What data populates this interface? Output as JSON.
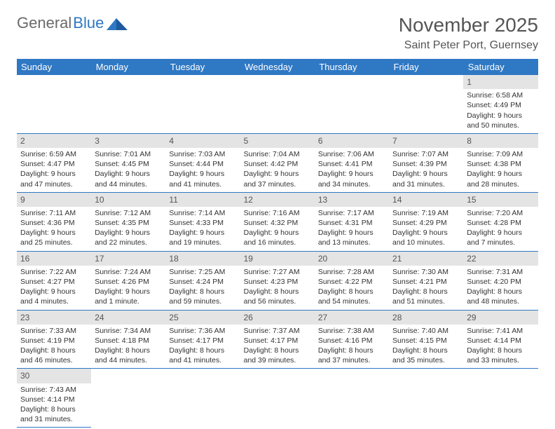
{
  "brand": {
    "word1": "General",
    "word2": "Blue"
  },
  "title": "November 2025",
  "subtitle": "Saint Peter Port, Guernsey",
  "colors": {
    "header_bg": "#2f78c4",
    "daynum_bg": "#e4e4e4",
    "text": "#333333",
    "title_text": "#555555"
  },
  "dayNames": [
    "Sunday",
    "Monday",
    "Tuesday",
    "Wednesday",
    "Thursday",
    "Friday",
    "Saturday"
  ],
  "weeks": [
    [
      null,
      null,
      null,
      null,
      null,
      null,
      {
        "n": "1",
        "sunrise": "Sunrise: 6:58 AM",
        "sunset": "Sunset: 4:49 PM",
        "daylight": "Daylight: 9 hours and 50 minutes."
      }
    ],
    [
      {
        "n": "2",
        "sunrise": "Sunrise: 6:59 AM",
        "sunset": "Sunset: 4:47 PM",
        "daylight": "Daylight: 9 hours and 47 minutes."
      },
      {
        "n": "3",
        "sunrise": "Sunrise: 7:01 AM",
        "sunset": "Sunset: 4:45 PM",
        "daylight": "Daylight: 9 hours and 44 minutes."
      },
      {
        "n": "4",
        "sunrise": "Sunrise: 7:03 AM",
        "sunset": "Sunset: 4:44 PM",
        "daylight": "Daylight: 9 hours and 41 minutes."
      },
      {
        "n": "5",
        "sunrise": "Sunrise: 7:04 AM",
        "sunset": "Sunset: 4:42 PM",
        "daylight": "Daylight: 9 hours and 37 minutes."
      },
      {
        "n": "6",
        "sunrise": "Sunrise: 7:06 AM",
        "sunset": "Sunset: 4:41 PM",
        "daylight": "Daylight: 9 hours and 34 minutes."
      },
      {
        "n": "7",
        "sunrise": "Sunrise: 7:07 AM",
        "sunset": "Sunset: 4:39 PM",
        "daylight": "Daylight: 9 hours and 31 minutes."
      },
      {
        "n": "8",
        "sunrise": "Sunrise: 7:09 AM",
        "sunset": "Sunset: 4:38 PM",
        "daylight": "Daylight: 9 hours and 28 minutes."
      }
    ],
    [
      {
        "n": "9",
        "sunrise": "Sunrise: 7:11 AM",
        "sunset": "Sunset: 4:36 PM",
        "daylight": "Daylight: 9 hours and 25 minutes."
      },
      {
        "n": "10",
        "sunrise": "Sunrise: 7:12 AM",
        "sunset": "Sunset: 4:35 PM",
        "daylight": "Daylight: 9 hours and 22 minutes."
      },
      {
        "n": "11",
        "sunrise": "Sunrise: 7:14 AM",
        "sunset": "Sunset: 4:33 PM",
        "daylight": "Daylight: 9 hours and 19 minutes."
      },
      {
        "n": "12",
        "sunrise": "Sunrise: 7:16 AM",
        "sunset": "Sunset: 4:32 PM",
        "daylight": "Daylight: 9 hours and 16 minutes."
      },
      {
        "n": "13",
        "sunrise": "Sunrise: 7:17 AM",
        "sunset": "Sunset: 4:31 PM",
        "daylight": "Daylight: 9 hours and 13 minutes."
      },
      {
        "n": "14",
        "sunrise": "Sunrise: 7:19 AM",
        "sunset": "Sunset: 4:29 PM",
        "daylight": "Daylight: 9 hours and 10 minutes."
      },
      {
        "n": "15",
        "sunrise": "Sunrise: 7:20 AM",
        "sunset": "Sunset: 4:28 PM",
        "daylight": "Daylight: 9 hours and 7 minutes."
      }
    ],
    [
      {
        "n": "16",
        "sunrise": "Sunrise: 7:22 AM",
        "sunset": "Sunset: 4:27 PM",
        "daylight": "Daylight: 9 hours and 4 minutes."
      },
      {
        "n": "17",
        "sunrise": "Sunrise: 7:24 AM",
        "sunset": "Sunset: 4:26 PM",
        "daylight": "Daylight: 9 hours and 1 minute."
      },
      {
        "n": "18",
        "sunrise": "Sunrise: 7:25 AM",
        "sunset": "Sunset: 4:24 PM",
        "daylight": "Daylight: 8 hours and 59 minutes."
      },
      {
        "n": "19",
        "sunrise": "Sunrise: 7:27 AM",
        "sunset": "Sunset: 4:23 PM",
        "daylight": "Daylight: 8 hours and 56 minutes."
      },
      {
        "n": "20",
        "sunrise": "Sunrise: 7:28 AM",
        "sunset": "Sunset: 4:22 PM",
        "daylight": "Daylight: 8 hours and 54 minutes."
      },
      {
        "n": "21",
        "sunrise": "Sunrise: 7:30 AM",
        "sunset": "Sunset: 4:21 PM",
        "daylight": "Daylight: 8 hours and 51 minutes."
      },
      {
        "n": "22",
        "sunrise": "Sunrise: 7:31 AM",
        "sunset": "Sunset: 4:20 PM",
        "daylight": "Daylight: 8 hours and 48 minutes."
      }
    ],
    [
      {
        "n": "23",
        "sunrise": "Sunrise: 7:33 AM",
        "sunset": "Sunset: 4:19 PM",
        "daylight": "Daylight: 8 hours and 46 minutes."
      },
      {
        "n": "24",
        "sunrise": "Sunrise: 7:34 AM",
        "sunset": "Sunset: 4:18 PM",
        "daylight": "Daylight: 8 hours and 44 minutes."
      },
      {
        "n": "25",
        "sunrise": "Sunrise: 7:36 AM",
        "sunset": "Sunset: 4:17 PM",
        "daylight": "Daylight: 8 hours and 41 minutes."
      },
      {
        "n": "26",
        "sunrise": "Sunrise: 7:37 AM",
        "sunset": "Sunset: 4:17 PM",
        "daylight": "Daylight: 8 hours and 39 minutes."
      },
      {
        "n": "27",
        "sunrise": "Sunrise: 7:38 AM",
        "sunset": "Sunset: 4:16 PM",
        "daylight": "Daylight: 8 hours and 37 minutes."
      },
      {
        "n": "28",
        "sunrise": "Sunrise: 7:40 AM",
        "sunset": "Sunset: 4:15 PM",
        "daylight": "Daylight: 8 hours and 35 minutes."
      },
      {
        "n": "29",
        "sunrise": "Sunrise: 7:41 AM",
        "sunset": "Sunset: 4:14 PM",
        "daylight": "Daylight: 8 hours and 33 minutes."
      }
    ],
    [
      {
        "n": "30",
        "sunrise": "Sunrise: 7:43 AM",
        "sunset": "Sunset: 4:14 PM",
        "daylight": "Daylight: 8 hours and 31 minutes."
      },
      null,
      null,
      null,
      null,
      null,
      null
    ]
  ]
}
